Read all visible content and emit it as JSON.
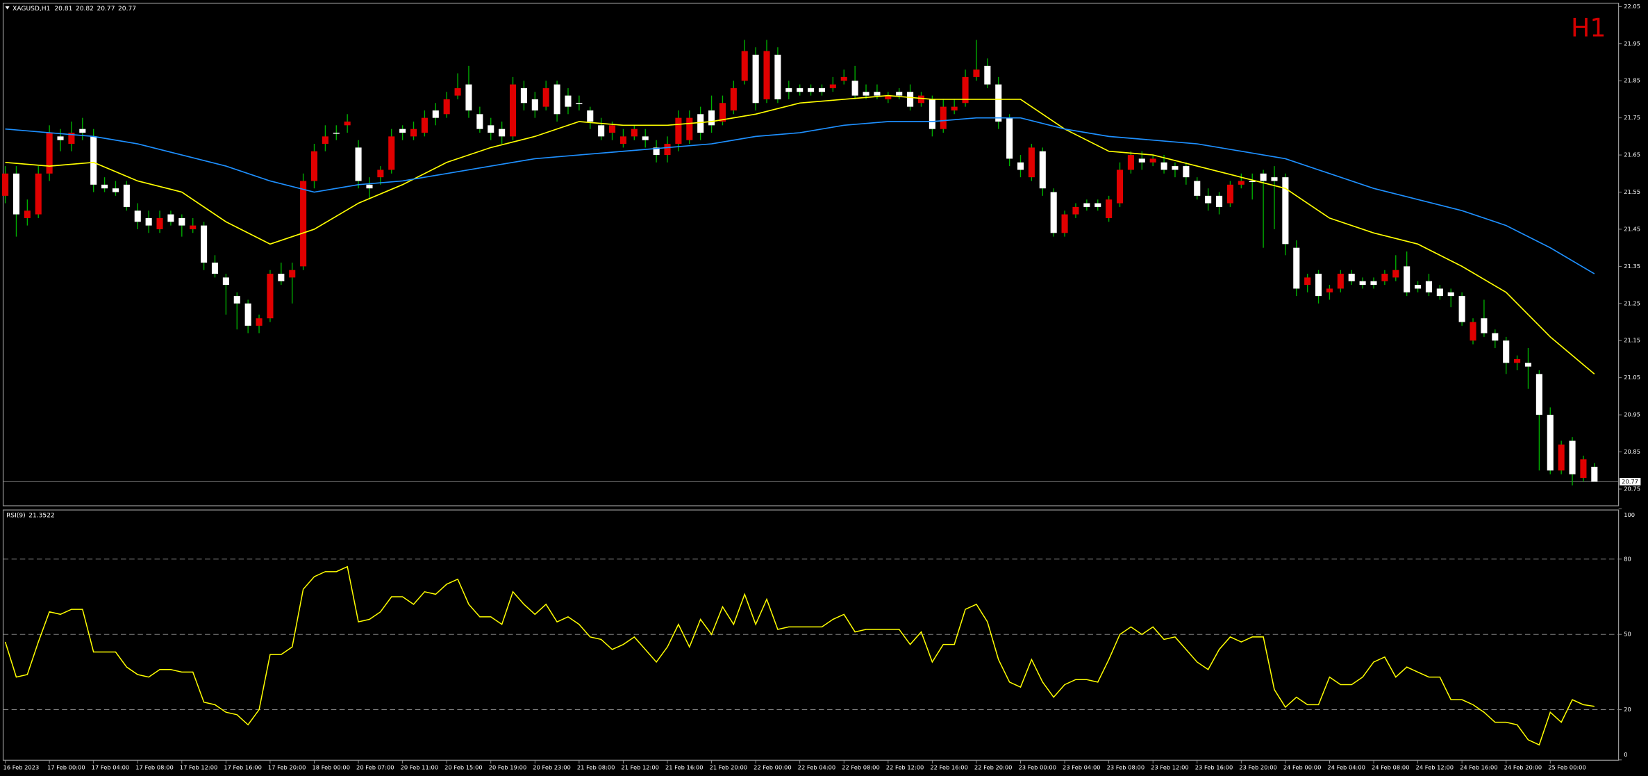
{
  "chart_data": {
    "type": "candlestick",
    "symbol": "XAGUSD,H1",
    "timeframe_badge": "H1",
    "up_color": "#e00000",
    "down_color": "#ffffff",
    "wick_color": "#00b000",
    "ylim": [
      20.705,
      22.059
    ],
    "yticks": [
      22.05,
      21.95,
      21.85,
      21.75,
      21.65,
      21.55,
      21.45,
      21.35,
      21.25,
      21.15,
      21.05,
      20.95,
      20.85,
      20.75
    ],
    "xticks": [
      {
        "value": 0,
        "label": "16 Feb 2023"
      },
      {
        "value": 4,
        "label": "17 Feb 00:00"
      },
      {
        "value": 8,
        "label": "17 Feb 04:00"
      },
      {
        "value": 12,
        "label": "17 Feb 08:00"
      },
      {
        "value": 16,
        "label": "17 Feb 12:00"
      },
      {
        "value": 20,
        "label": "17 Feb 16:00"
      },
      {
        "value": 24,
        "label": "17 Feb 20:00"
      },
      {
        "value": 28,
        "label": "18 Feb 00:00"
      },
      {
        "value": 32,
        "label": "20 Feb 07:00"
      },
      {
        "value": 36,
        "label": "20 Feb 11:00"
      },
      {
        "value": 40,
        "label": "20 Feb 15:00"
      },
      {
        "value": 44,
        "label": "20 Feb 19:00"
      },
      {
        "value": 48,
        "label": "20 Feb 23:00"
      },
      {
        "value": 52,
        "label": "21 Feb 08:00"
      },
      {
        "value": 56,
        "label": "21 Feb 12:00"
      },
      {
        "value": 60,
        "label": "21 Feb 16:00"
      },
      {
        "value": 64,
        "label": "21 Feb 20:00"
      },
      {
        "value": 68,
        "label": "22 Feb 00:00"
      },
      {
        "value": 72,
        "label": "22 Feb 04:00"
      },
      {
        "value": 76,
        "label": "22 Feb 08:00"
      },
      {
        "value": 80,
        "label": "22 Feb 12:00"
      },
      {
        "value": 84,
        "label": "22 Feb 16:00"
      },
      {
        "value": 88,
        "label": "22 Feb 20:00"
      },
      {
        "value": 92,
        "label": "23 Feb 00:00"
      },
      {
        "value": 96,
        "label": "23 Feb 04:00"
      },
      {
        "value": 100,
        "label": "23 Feb 08:00"
      },
      {
        "value": 104,
        "label": "23 Feb 12:00"
      },
      {
        "value": 108,
        "label": "23 Feb 16:00"
      },
      {
        "value": 112,
        "label": "23 Feb 20:00"
      },
      {
        "value": 116,
        "label": "24 Feb 00:00"
      },
      {
        "value": 120,
        "label": "24 Feb 04:00"
      },
      {
        "value": 124,
        "label": "24 Feb 08:00"
      },
      {
        "value": 128,
        "label": "24 Feb 12:00"
      },
      {
        "value": 132,
        "label": "24 Feb 16:00"
      },
      {
        "value": 136,
        "label": "24 Feb 20:00"
      },
      {
        "value": 140,
        "label": "25 Feb 00:00"
      }
    ],
    "candles": [
      [
        21.54,
        21.62,
        21.52,
        21.6
      ],
      [
        21.6,
        21.62,
        21.43,
        21.49
      ],
      [
        21.48,
        21.53,
        21.46,
        21.5
      ],
      [
        21.49,
        21.62,
        21.48,
        21.6
      ],
      [
        21.6,
        21.73,
        21.58,
        21.71
      ],
      [
        21.7,
        21.72,
        21.66,
        21.69
      ],
      [
        21.68,
        21.74,
        21.66,
        21.71
      ],
      [
        21.72,
        21.75,
        21.69,
        21.71
      ],
      [
        21.7,
        21.72,
        21.55,
        21.57
      ],
      [
        21.57,
        21.59,
        21.55,
        21.56
      ],
      [
        21.56,
        21.58,
        21.54,
        21.55
      ],
      [
        21.57,
        21.58,
        21.5,
        21.51
      ],
      [
        21.5,
        21.52,
        21.45,
        21.47
      ],
      [
        21.48,
        21.5,
        21.44,
        21.46
      ],
      [
        21.45,
        21.5,
        21.44,
        21.48
      ],
      [
        21.49,
        21.5,
        21.46,
        21.47
      ],
      [
        21.48,
        21.49,
        21.43,
        21.46
      ],
      [
        21.45,
        21.48,
        21.44,
        21.46
      ],
      [
        21.46,
        21.47,
        21.34,
        21.36
      ],
      [
        21.36,
        21.38,
        21.32,
        21.33
      ],
      [
        21.32,
        21.33,
        21.22,
        21.3
      ],
      [
        21.27,
        21.28,
        21.18,
        21.25
      ],
      [
        21.25,
        21.26,
        21.17,
        21.19
      ],
      [
        21.19,
        21.22,
        21.17,
        21.21
      ],
      [
        21.21,
        21.34,
        21.2,
        21.33
      ],
      [
        21.33,
        21.36,
        21.3,
        21.31
      ],
      [
        21.32,
        21.36,
        21.25,
        21.34
      ],
      [
        21.35,
        21.6,
        21.34,
        21.58
      ],
      [
        21.58,
        21.68,
        21.56,
        21.66
      ],
      [
        21.68,
        21.73,
        21.66,
        21.7
      ],
      [
        21.71,
        21.73,
        21.69,
        21.71
      ],
      [
        21.73,
        21.76,
        21.71,
        21.74
      ],
      [
        21.67,
        21.69,
        21.56,
        21.58
      ],
      [
        21.57,
        21.59,
        21.53,
        21.56
      ],
      [
        21.59,
        21.62,
        21.57,
        21.61
      ],
      [
        21.61,
        21.72,
        21.6,
        21.7
      ],
      [
        21.72,
        21.73,
        21.69,
        21.71
      ],
      [
        21.7,
        21.74,
        21.69,
        21.72
      ],
      [
        21.71,
        21.77,
        21.7,
        21.75
      ],
      [
        21.77,
        21.79,
        21.73,
        21.75
      ],
      [
        21.76,
        21.82,
        21.75,
        21.8
      ],
      [
        21.81,
        21.87,
        21.8,
        21.83
      ],
      [
        21.84,
        21.89,
        21.75,
        21.77
      ],
      [
        21.76,
        21.78,
        21.71,
        21.72
      ],
      [
        21.73,
        21.75,
        21.69,
        21.71
      ],
      [
        21.72,
        21.74,
        21.68,
        21.7
      ],
      [
        21.7,
        21.86,
        21.69,
        21.84
      ],
      [
        21.83,
        21.85,
        21.77,
        21.79
      ],
      [
        21.8,
        21.82,
        21.75,
        21.77
      ],
      [
        21.78,
        21.85,
        21.77,
        21.83
      ],
      [
        21.84,
        21.85,
        21.74,
        21.76
      ],
      [
        21.81,
        21.83,
        21.76,
        21.78
      ],
      [
        21.79,
        21.81,
        21.77,
        21.79
      ],
      [
        21.77,
        21.78,
        21.72,
        21.74
      ],
      [
        21.73,
        21.75,
        21.69,
        21.7
      ],
      [
        21.71,
        21.74,
        21.69,
        21.73
      ],
      [
        21.68,
        21.72,
        21.67,
        21.7
      ],
      [
        21.7,
        21.73,
        21.69,
        21.72
      ],
      [
        21.7,
        21.72,
        21.67,
        21.69
      ],
      [
        21.67,
        21.69,
        21.63,
        21.65
      ],
      [
        21.65,
        21.7,
        21.63,
        21.68
      ],
      [
        21.68,
        21.77,
        21.66,
        21.75
      ],
      [
        21.69,
        21.77,
        21.68,
        21.75
      ],
      [
        21.76,
        21.78,
        21.69,
        21.71
      ],
      [
        21.77,
        21.81,
        21.71,
        21.73
      ],
      [
        21.74,
        21.81,
        21.73,
        21.79
      ],
      [
        21.77,
        21.85,
        21.76,
        21.83
      ],
      [
        21.85,
        21.96,
        21.84,
        21.93
      ],
      [
        21.92,
        21.94,
        21.77,
        21.79
      ],
      [
        21.8,
        21.96,
        21.79,
        21.93
      ],
      [
        21.92,
        21.94,
        21.79,
        21.8
      ],
      [
        21.83,
        21.85,
        21.8,
        21.82
      ],
      [
        21.83,
        21.84,
        21.81,
        21.82
      ],
      [
        21.83,
        21.84,
        21.81,
        21.82
      ],
      [
        21.83,
        21.84,
        21.81,
        21.82
      ],
      [
        21.83,
        21.86,
        21.82,
        21.84
      ],
      [
        21.85,
        21.88,
        21.84,
        21.86
      ],
      [
        21.85,
        21.89,
        21.8,
        21.81
      ],
      [
        21.82,
        21.84,
        21.8,
        21.81
      ],
      [
        21.82,
        21.84,
        21.8,
        21.81
      ],
      [
        21.8,
        21.82,
        21.79,
        21.81
      ],
      [
        21.82,
        21.83,
        21.8,
        21.81
      ],
      [
        21.82,
        21.84,
        21.77,
        21.78
      ],
      [
        21.79,
        21.82,
        21.78,
        21.81
      ],
      [
        21.8,
        21.81,
        21.7,
        21.72
      ],
      [
        21.72,
        21.8,
        21.71,
        21.78
      ],
      [
        21.77,
        21.8,
        21.76,
        21.78
      ],
      [
        21.79,
        21.88,
        21.78,
        21.86
      ],
      [
        21.86,
        21.96,
        21.85,
        21.88
      ],
      [
        21.89,
        21.91,
        21.83,
        21.84
      ],
      [
        21.84,
        21.86,
        21.72,
        21.74
      ],
      [
        21.75,
        21.76,
        21.62,
        21.64
      ],
      [
        21.63,
        21.65,
        21.59,
        21.61
      ],
      [
        21.59,
        21.68,
        21.58,
        21.67
      ],
      [
        21.66,
        21.67,
        21.54,
        21.56
      ],
      [
        21.55,
        21.56,
        21.43,
        21.44
      ],
      [
        21.44,
        21.5,
        21.43,
        21.49
      ],
      [
        21.49,
        21.52,
        21.48,
        21.51
      ],
      [
        21.52,
        21.53,
        21.5,
        21.51
      ],
      [
        21.52,
        21.53,
        21.5,
        21.51
      ],
      [
        21.48,
        21.54,
        21.47,
        21.53
      ],
      [
        21.52,
        21.63,
        21.51,
        21.61
      ],
      [
        21.61,
        21.66,
        21.6,
        21.65
      ],
      [
        21.64,
        21.66,
        21.61,
        21.63
      ],
      [
        21.63,
        21.65,
        21.62,
        21.64
      ],
      [
        21.63,
        21.65,
        21.6,
        21.61
      ],
      [
        21.62,
        21.63,
        21.59,
        21.61
      ],
      [
        21.62,
        21.63,
        21.57,
        21.59
      ],
      [
        21.58,
        21.59,
        21.53,
        21.54
      ],
      [
        21.54,
        21.56,
        21.5,
        21.52
      ],
      [
        21.54,
        21.55,
        21.49,
        21.51
      ],
      [
        21.52,
        21.58,
        21.51,
        21.57
      ],
      [
        21.57,
        21.6,
        21.56,
        21.58
      ],
      [
        21.58,
        21.6,
        21.53,
        21.58
      ],
      [
        21.6,
        21.61,
        21.4,
        21.58
      ],
      [
        21.59,
        21.62,
        21.45,
        21.58
      ],
      [
        21.59,
        21.6,
        21.38,
        21.41
      ],
      [
        21.4,
        21.42,
        21.27,
        21.29
      ],
      [
        21.3,
        21.33,
        21.28,
        21.32
      ],
      [
        21.33,
        21.34,
        21.25,
        21.27
      ],
      [
        21.28,
        21.3,
        21.26,
        21.29
      ],
      [
        21.29,
        21.34,
        21.28,
        21.33
      ],
      [
        21.33,
        21.34,
        21.3,
        21.31
      ],
      [
        21.31,
        21.32,
        21.29,
        21.3
      ],
      [
        21.31,
        21.32,
        21.29,
        21.3
      ],
      [
        21.31,
        21.34,
        21.3,
        21.33
      ],
      [
        21.32,
        21.38,
        21.31,
        21.34
      ],
      [
        21.35,
        21.39,
        21.27,
        21.28
      ],
      [
        21.3,
        21.31,
        21.28,
        21.29
      ],
      [
        21.31,
        21.33,
        21.27,
        21.28
      ],
      [
        21.29,
        21.3,
        21.26,
        21.27
      ],
      [
        21.28,
        21.29,
        21.24,
        21.27
      ],
      [
        21.27,
        21.28,
        21.19,
        21.2
      ],
      [
        21.15,
        21.21,
        21.14,
        21.2
      ],
      [
        21.21,
        21.26,
        21.16,
        21.17
      ],
      [
        21.17,
        21.18,
        21.13,
        21.15
      ],
      [
        21.15,
        21.16,
        21.06,
        21.09
      ],
      [
        21.09,
        21.11,
        21.07,
        21.1
      ],
      [
        21.09,
        21.13,
        21.02,
        21.08
      ],
      [
        21.06,
        21.07,
        20.8,
        20.95
      ],
      [
        20.95,
        20.97,
        20.79,
        20.8
      ],
      [
        20.8,
        20.88,
        20.79,
        20.87
      ],
      [
        20.88,
        20.89,
        20.76,
        20.79
      ],
      [
        20.78,
        20.84,
        20.77,
        20.83
      ],
      [
        20.81,
        20.82,
        20.77,
        20.77
      ]
    ],
    "ma": [
      {
        "color": "#ffff00",
        "x": [
          0,
          4,
          8,
          12,
          16,
          20,
          24,
          28,
          32,
          36,
          40,
          44,
          48,
          52,
          56,
          60,
          64,
          68,
          72,
          76,
          80,
          84,
          88,
          92,
          96,
          100,
          104,
          108,
          112,
          116,
          120,
          124,
          128,
          132,
          136,
          140,
          144
        ],
        "values": [
          21.63,
          21.62,
          21.63,
          21.58,
          21.55,
          21.47,
          21.41,
          21.45,
          21.52,
          21.57,
          21.63,
          21.67,
          21.7,
          21.74,
          21.73,
          21.73,
          21.74,
          21.76,
          21.79,
          21.8,
          21.81,
          21.8,
          21.8,
          21.8,
          21.72,
          21.66,
          21.65,
          21.62,
          21.59,
          21.56,
          21.48,
          21.44,
          21.41,
          21.35,
          21.28,
          21.16,
          21.06
        ]
      },
      {
        "color": "#1e90ff",
        "x": [
          0,
          4,
          8,
          12,
          16,
          20,
          24,
          28,
          32,
          36,
          40,
          44,
          48,
          52,
          56,
          60,
          64,
          68,
          72,
          76,
          80,
          84,
          88,
          92,
          96,
          100,
          104,
          108,
          112,
          116,
          120,
          124,
          128,
          132,
          136,
          140,
          144
        ],
        "values": [
          21.72,
          21.71,
          21.7,
          21.68,
          21.65,
          21.62,
          21.58,
          21.55,
          21.57,
          21.58,
          21.6,
          21.62,
          21.64,
          21.65,
          21.66,
          21.67,
          21.68,
          21.7,
          21.71,
          21.73,
          21.74,
          21.74,
          21.75,
          21.75,
          21.72,
          21.7,
          21.69,
          21.68,
          21.66,
          21.64,
          21.6,
          21.56,
          21.53,
          21.5,
          21.46,
          21.4,
          21.33
        ]
      }
    ],
    "rsi": {
      "name": "RSI(9)",
      "color": "#ffff00",
      "ylim": [
        0,
        100
      ],
      "yticks": [
        100,
        80,
        50,
        20,
        0
      ],
      "levels": [
        80,
        50,
        20
      ],
      "values": [
        47,
        33,
        34,
        47,
        59,
        58,
        60,
        60,
        43,
        43,
        43,
        37,
        34,
        33,
        36,
        36,
        35,
        35,
        23,
        22,
        19,
        18,
        14,
        20,
        42,
        42,
        45,
        68,
        73,
        75,
        75,
        77,
        55,
        56,
        59,
        65,
        65,
        62,
        67,
        66,
        70,
        72,
        62,
        57,
        57,
        54,
        67,
        62,
        58,
        62,
        55,
        57,
        54,
        49,
        48,
        44,
        46,
        49,
        44,
        39,
        45,
        54,
        45,
        56,
        50,
        61,
        54,
        66,
        54,
        64,
        52,
        53,
        53,
        53,
        53,
        56,
        58,
        51,
        52,
        52,
        52,
        52,
        46,
        51,
        39,
        46,
        46,
        60,
        62,
        55,
        40,
        31,
        29,
        40,
        31,
        25,
        30,
        32,
        32,
        31,
        40,
        50,
        53,
        50,
        53,
        48,
        49,
        44,
        39,
        36,
        44,
        49,
        47,
        49,
        49,
        28,
        21,
        25,
        22,
        22,
        33,
        30,
        30,
        33,
        39,
        41,
        33,
        37,
        35,
        33,
        33,
        24,
        24,
        22,
        19,
        15,
        15,
        14,
        8,
        6,
        19,
        15,
        24,
        22,
        21.3522
      ]
    }
  }
}
